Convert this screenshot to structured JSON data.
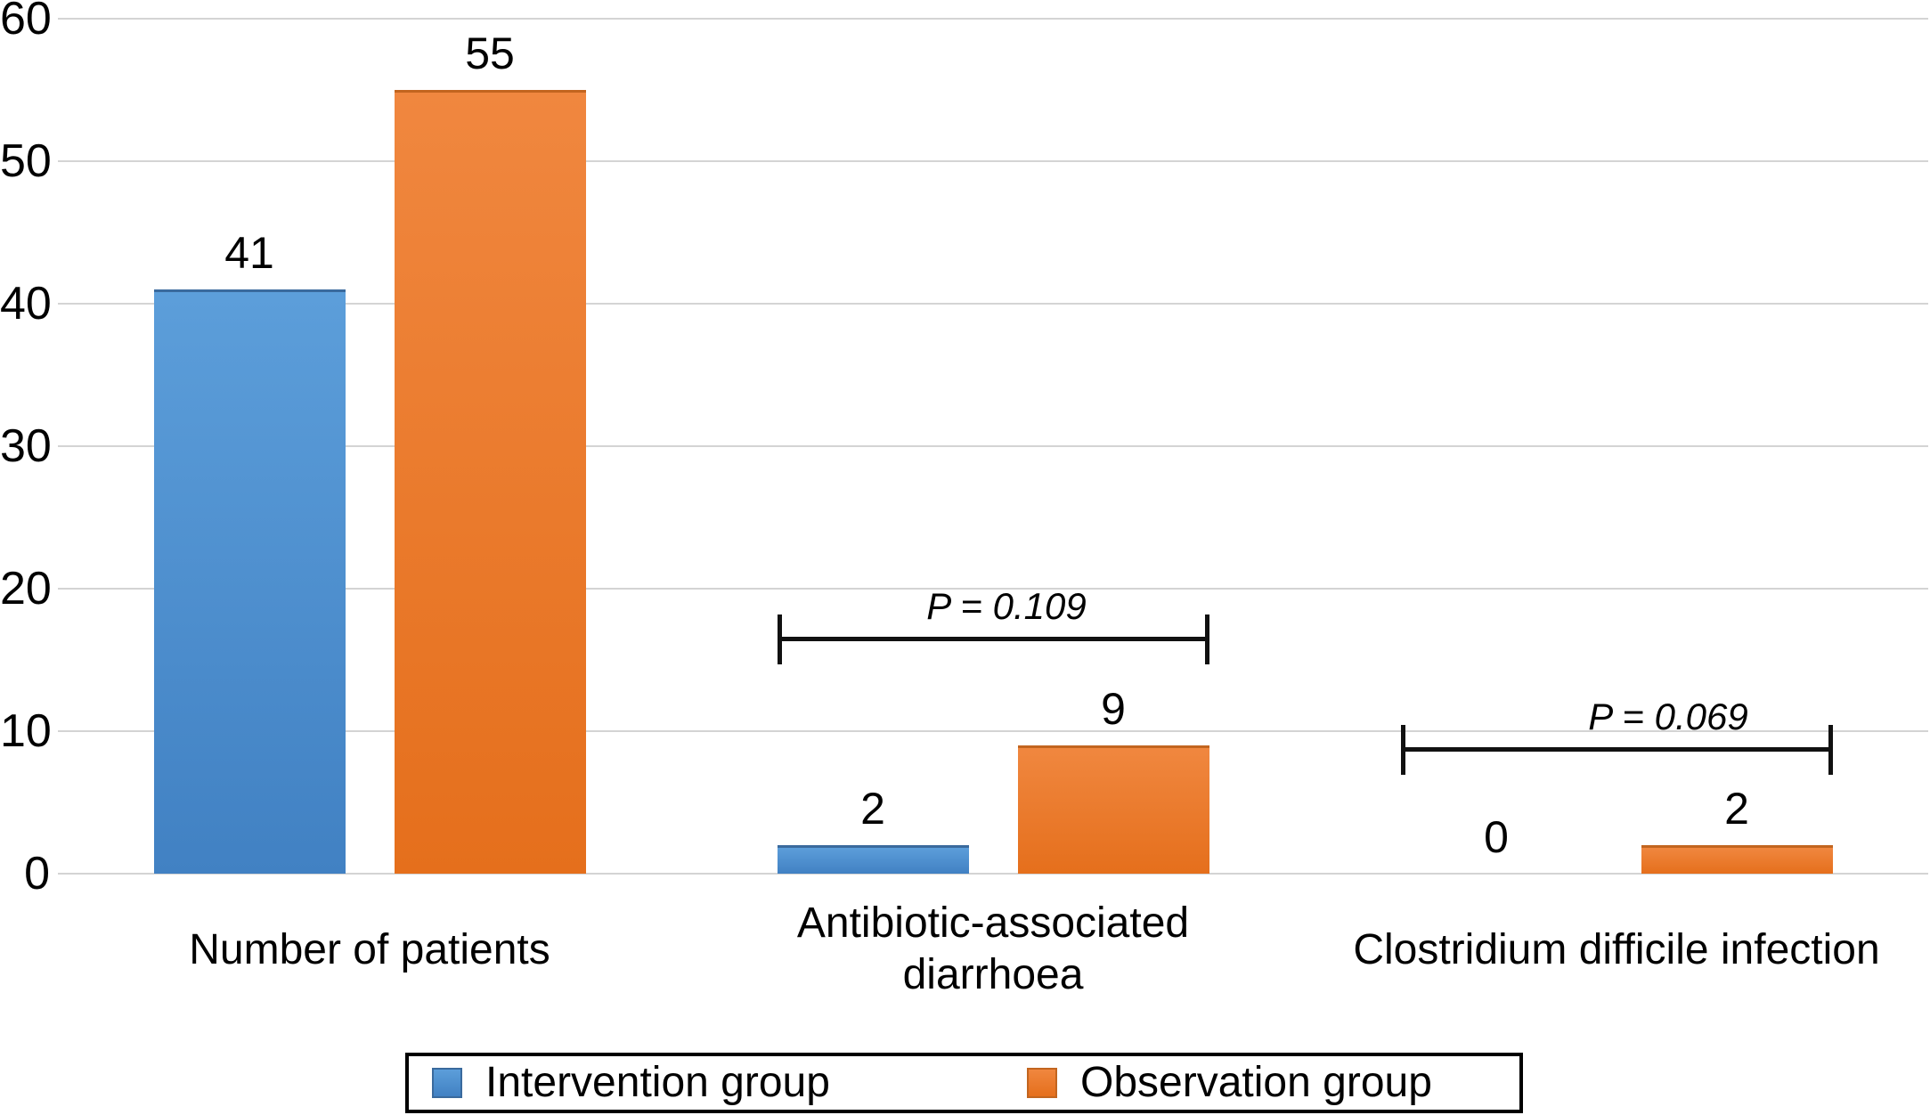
{
  "chart_data": {
    "type": "bar",
    "title": "",
    "categories": [
      "Number of patients",
      "Antibiotic-associated diarrhoea",
      "Clostridium difficile infection"
    ],
    "categories_wrapped": [
      [
        "Number of patients"
      ],
      [
        "Antibiotic-associated",
        "diarrhoea"
      ],
      [
        "Clostridium difficile infection"
      ]
    ],
    "series": [
      {
        "name": "Intervention group",
        "color": "#4a8fd0",
        "values": [
          41,
          2,
          0
        ]
      },
      {
        "name": "Observation group",
        "color": "#ed7d31",
        "values": [
          55,
          9,
          2
        ]
      }
    ],
    "y_ticks": [
      0,
      10,
      20,
      30,
      40,
      50,
      60
    ],
    "ylim": [
      0,
      60
    ],
    "grid": true,
    "grid_color": "#d4d4d4",
    "data_labels": true,
    "legend_position": "bottom",
    "annotations": [
      {
        "category_index": 1,
        "text": "P = 0.109"
      },
      {
        "category_index": 2,
        "text": "P = 0.069"
      }
    ]
  },
  "legend": {
    "items": [
      {
        "label": "Intervention group",
        "color": "#4a8fd0"
      },
      {
        "label": "Observation group",
        "color": "#ed7d31"
      }
    ]
  }
}
